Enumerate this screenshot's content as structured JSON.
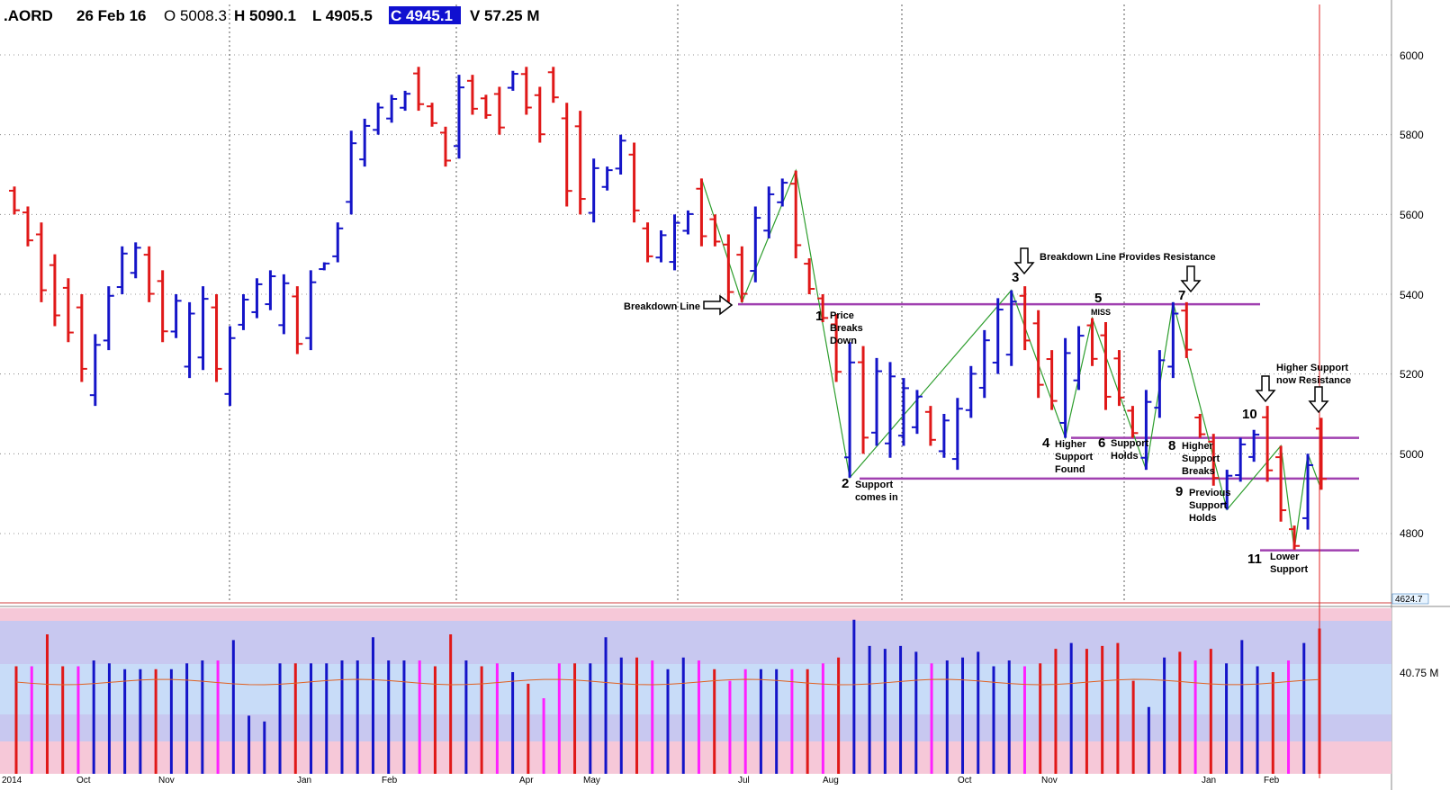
{
  "header": {
    "symbol": ".AORD",
    "date": "26 Feb 16",
    "open": "O 5008.3",
    "high": "H 5090.1",
    "low": "L 4905.5",
    "close": "C 4945.1",
    "volume": "V 57.25 M"
  },
  "colors": {
    "up_bar": "#1414c8",
    "down_bar": "#e01818",
    "support_line": "#a040b0",
    "zigzag": "#2e9e2e",
    "cursor_line": "#e02020",
    "close_highlight": "#1010d0",
    "volume_band_top": "#f6c8d8",
    "volume_band_mid": "#c8c8f0",
    "volume_band_light": "#c8dcf8",
    "volume_ma": "#e06020",
    "volume_up_pink": "#ff20ff"
  },
  "y_axis": {
    "ticks": [
      "6000",
      "5800",
      "5600",
      "5400",
      "5200",
      "5000",
      "4800"
    ],
    "cursor_value": "4624.7",
    "volume_ma_label": "40.75 M"
  },
  "x_axis": {
    "ticks": [
      "2014",
      "Oct",
      "Nov",
      "Jan",
      "Feb",
      "Apr",
      "May",
      "Jul",
      "Aug",
      "Oct",
      "Nov",
      "Jan",
      "Feb"
    ]
  },
  "annotations": {
    "breakdown_line": "Breakdown Line",
    "breakdown_resistance": "Breakdown Line Provides Resistance",
    "n1": "1",
    "n1_text": [
      "Price",
      "Breaks",
      "Down"
    ],
    "n2": "2",
    "n2_text": [
      "Support",
      "comes in"
    ],
    "n3": "3",
    "n4": "4",
    "n4_text": [
      "Higher",
      "Support",
      "Found"
    ],
    "n5": "5",
    "n5_text": "MISS",
    "n6": "6",
    "n6_text": [
      "Support",
      "Holds"
    ],
    "n7": "7",
    "n8": "8",
    "n8_text": [
      "Higher",
      "Support",
      "Breaks"
    ],
    "n9": "9",
    "n9_text": [
      "Previous",
      "Support",
      "Holds"
    ],
    "n10": "10",
    "n11": "11",
    "n11_text": [
      "Lower",
      "Support"
    ],
    "higher_support": [
      "Higher Support",
      "now Resistance"
    ]
  },
  "chart_data": {
    "type": "ohlc_bar",
    "period": "monthly-ish weekly bars",
    "price_range": [
      4620,
      6120
    ],
    "price_bars": [
      [
        5670,
        5600,
        "d"
      ],
      [
        5620,
        5520,
        "d"
      ],
      [
        5580,
        5380,
        "d"
      ],
      [
        5500,
        5320,
        "d"
      ],
      [
        5440,
        5280,
        "d"
      ],
      [
        5400,
        5180,
        "d"
      ],
      [
        5300,
        5120,
        "u"
      ],
      [
        5420,
        5260,
        "u"
      ],
      [
        5520,
        5400,
        "u"
      ],
      [
        5530,
        5440,
        "u"
      ],
      [
        5520,
        5380,
        "d"
      ],
      [
        5460,
        5280,
        "d"
      ],
      [
        5400,
        5290,
        "u"
      ],
      [
        5380,
        5190,
        "u"
      ],
      [
        5420,
        5210,
        "u"
      ],
      [
        5400,
        5180,
        "d"
      ],
      [
        5320,
        5120,
        "u"
      ],
      [
        5400,
        5310,
        "u"
      ],
      [
        5440,
        5340,
        "u"
      ],
      [
        5460,
        5360,
        "u"
      ],
      [
        5450,
        5300,
        "u"
      ],
      [
        5420,
        5250,
        "d"
      ],
      [
        5460,
        5260,
        "u"
      ],
      [
        5480,
        5460,
        "u"
      ],
      [
        5580,
        5480,
        "u"
      ],
      [
        5810,
        5600,
        "u"
      ],
      [
        5840,
        5720,
        "u"
      ],
      [
        5880,
        5800,
        "u"
      ],
      [
        5900,
        5830,
        "u"
      ],
      [
        5910,
        5860,
        "u"
      ],
      [
        5970,
        5860,
        "d"
      ],
      [
        5880,
        5820,
        "d"
      ],
      [
        5820,
        5720,
        "d"
      ],
      [
        5950,
        5740,
        "u"
      ],
      [
        5950,
        5850,
        "d"
      ],
      [
        5900,
        5840,
        "d"
      ],
      [
        5920,
        5800,
        "d"
      ],
      [
        5960,
        5910,
        "u"
      ],
      [
        5970,
        5850,
        "d"
      ],
      [
        5920,
        5780,
        "d"
      ],
      [
        5970,
        5880,
        "d"
      ],
      [
        5880,
        5620,
        "d"
      ],
      [
        5860,
        5600,
        "d"
      ],
      [
        5740,
        5580,
        "u"
      ],
      [
        5720,
        5660,
        "u"
      ],
      [
        5800,
        5700,
        "u"
      ],
      [
        5780,
        5580,
        "d"
      ],
      [
        5580,
        5480,
        "d"
      ],
      [
        5560,
        5480,
        "u"
      ],
      [
        5600,
        5460,
        "u"
      ],
      [
        5610,
        5550,
        "u"
      ],
      [
        5690,
        5520,
        "d"
      ],
      [
        5600,
        5520,
        "d"
      ],
      [
        5550,
        5380,
        "d"
      ],
      [
        5520,
        5380,
        "d"
      ],
      [
        5620,
        5430,
        "u"
      ],
      [
        5670,
        5540,
        "u"
      ],
      [
        5690,
        5620,
        "u"
      ],
      [
        5710,
        5490,
        "d"
      ],
      [
        5490,
        5400,
        "d"
      ],
      [
        5400,
        5330,
        "d"
      ],
      [
        5350,
        5180,
        "d"
      ],
      [
        5280,
        4940,
        "u"
      ],
      [
        5270,
        5000,
        "d"
      ],
      [
        5240,
        5020,
        "u"
      ],
      [
        5230,
        4990,
        "u"
      ],
      [
        5190,
        5020,
        "u"
      ],
      [
        5160,
        5050,
        "u"
      ],
      [
        5120,
        5020,
        "d"
      ],
      [
        5100,
        4990,
        "u"
      ],
      [
        5140,
        4960,
        "u"
      ],
      [
        5220,
        5090,
        "u"
      ],
      [
        5310,
        5140,
        "u"
      ],
      [
        5390,
        5200,
        "u"
      ],
      [
        5410,
        5220,
        "u"
      ],
      [
        5420,
        5260,
        "d"
      ],
      [
        5360,
        5140,
        "d"
      ],
      [
        5260,
        5110,
        "d"
      ],
      [
        5290,
        5040,
        "u"
      ],
      [
        5320,
        5160,
        "u"
      ],
      [
        5340,
        5220,
        "d"
      ],
      [
        5330,
        5110,
        "d"
      ],
      [
        5260,
        5120,
        "d"
      ],
      [
        5120,
        5040,
        "d"
      ],
      [
        5160,
        4960,
        "u"
      ],
      [
        5260,
        5090,
        "u"
      ],
      [
        5380,
        5190,
        "u"
      ],
      [
        5380,
        5240,
        "d"
      ],
      [
        5100,
        5040,
        "d"
      ],
      [
        5050,
        4920,
        "d"
      ],
      [
        4960,
        4860,
        "u"
      ],
      [
        5040,
        4930,
        "u"
      ],
      [
        5060,
        4980,
        "u"
      ],
      [
        5120,
        4930,
        "d"
      ],
      [
        5020,
        4830,
        "d"
      ],
      [
        4820,
        4760,
        "d"
      ],
      [
        5000,
        4810,
        "u"
      ],
      [
        5090,
        4910,
        "d"
      ]
    ],
    "support_lines": [
      5375,
      4938,
      5040,
      4758
    ],
    "volume_bars": [
      0.74,
      0.74,
      0.96,
      0.74,
      0.74,
      0.78,
      0.76,
      0.72,
      0.72,
      0.72,
      0.72,
      0.76,
      0.78,
      0.78,
      0.92,
      0.4,
      0.36,
      0.76,
      0.76,
      0.76,
      0.76,
      0.78,
      0.78,
      0.94,
      0.78,
      0.78,
      0.78,
      0.74,
      0.96,
      0.78,
      0.74,
      0.76,
      0.7,
      0.62,
      0.52,
      0.76,
      0.76,
      0.76,
      0.94,
      0.8,
      0.8,
      0.78,
      0.72,
      0.8,
      0.78,
      0.72,
      0.64,
      0.72,
      0.72,
      0.72,
      0.72,
      0.72,
      0.76,
      0.8,
      1.06,
      0.88,
      0.86,
      0.88,
      0.84,
      0.76,
      0.78,
      0.8,
      0.84,
      0.74,
      0.78,
      0.74,
      0.76,
      0.86,
      0.9,
      0.86,
      0.88,
      0.9,
      0.64,
      0.46,
      0.8,
      0.84,
      0.78,
      0.86,
      0.76,
      0.92,
      0.74,
      0.7,
      0.78,
      0.9,
      1.0
    ]
  }
}
